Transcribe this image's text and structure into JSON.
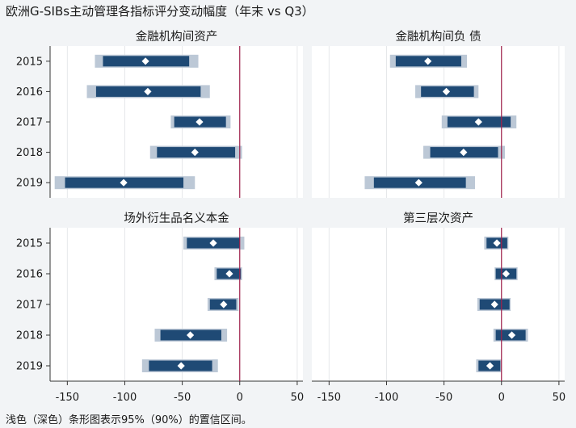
{
  "title": "欧洲G-SIBs主动管理各指标评分变动幅度（年末 vs Q3）",
  "note": "浅色（深色）条形图表示95%（90%）的置信区间。",
  "colors": {
    "ci95": "#bcc8d6",
    "ci90": "#1f4a75",
    "marker": "#ffffff",
    "reference_line": "#a0204a",
    "panel_background": "#ffffff",
    "figure_background": "#f2f4f6"
  },
  "chart_data": {
    "type": "interval",
    "x_ticks": [
      -150,
      -100,
      -50,
      0,
      50
    ],
    "xlim": [
      -165,
      55
    ],
    "reference_line_x": 0,
    "years": [
      "2015",
      "2016",
      "2017",
      "2018",
      "2019"
    ],
    "panels": [
      {
        "title": "金融机构间资产",
        "items": [
          {
            "year": "2015",
            "point": -82,
            "ci90": [
              -119,
              -44
            ],
            "ci95": [
              -126,
              -36
            ]
          },
          {
            "year": "2016",
            "point": -80,
            "ci90": [
              -125,
              -34
            ],
            "ci95": [
              -133,
              -26
            ]
          },
          {
            "year": "2017",
            "point": -35,
            "ci90": [
              -57,
              -12
            ],
            "ci95": [
              -60,
              -8
            ]
          },
          {
            "year": "2018",
            "point": -39,
            "ci90": [
              -72,
              -4
            ],
            "ci95": [
              -78,
              2
            ]
          },
          {
            "year": "2019",
            "point": -101,
            "ci90": [
              -152,
              -49
            ],
            "ci95": [
              -161,
              -39
            ]
          }
        ]
      },
      {
        "title": "金融机构间负 债",
        "items": [
          {
            "year": "2015",
            "point": -64,
            "ci90": [
              -92,
              -35
            ],
            "ci95": [
              -97,
              -30
            ]
          },
          {
            "year": "2016",
            "point": -48,
            "ci90": [
              -70,
              -24
            ],
            "ci95": [
              -75,
              -20
            ]
          },
          {
            "year": "2017",
            "point": -20,
            "ci90": [
              -47,
              8
            ],
            "ci95": [
              -52,
              13
            ]
          },
          {
            "year": "2018",
            "point": -33,
            "ci90": [
              -62,
              -3
            ],
            "ci95": [
              -68,
              3
            ]
          },
          {
            "year": "2019",
            "point": -72,
            "ci90": [
              -111,
              -31
            ],
            "ci95": [
              -119,
              -23
            ]
          }
        ]
      },
      {
        "title": "场外衍生品名义本金",
        "items": [
          {
            "year": "2015",
            "point": -23,
            "ci90": [
              -46,
              0
            ],
            "ci95": [
              -49,
              4
            ]
          },
          {
            "year": "2016",
            "point": -9,
            "ci90": [
              -20,
              1
            ],
            "ci95": [
              -22,
              2
            ]
          },
          {
            "year": "2017",
            "point": -14,
            "ci90": [
              -26,
              -3
            ],
            "ci95": [
              -28,
              -1
            ]
          },
          {
            "year": "2018",
            "point": -43,
            "ci90": [
              -69,
              -16
            ],
            "ci95": [
              -74,
              -11
            ]
          },
          {
            "year": "2019",
            "point": -51,
            "ci90": [
              -79,
              -24
            ],
            "ci95": [
              -85,
              -19
            ]
          }
        ]
      },
      {
        "title": "第三层次资产",
        "items": [
          {
            "year": "2015",
            "point": -4,
            "ci90": [
              -13,
              5
            ],
            "ci95": [
              -15,
              6
            ]
          },
          {
            "year": "2016",
            "point": 4,
            "ci90": [
              -5,
              13
            ],
            "ci95": [
              -6,
              14
            ]
          },
          {
            "year": "2017",
            "point": -6,
            "ci90": [
              -19,
              7
            ],
            "ci95": [
              -21,
              8
            ]
          },
          {
            "year": "2018",
            "point": 9,
            "ci90": [
              -5,
              21
            ],
            "ci95": [
              -7,
              23
            ]
          },
          {
            "year": "2019",
            "point": -10,
            "ci90": [
              -20,
              -1
            ],
            "ci95": [
              -22,
              0
            ]
          }
        ]
      }
    ]
  }
}
